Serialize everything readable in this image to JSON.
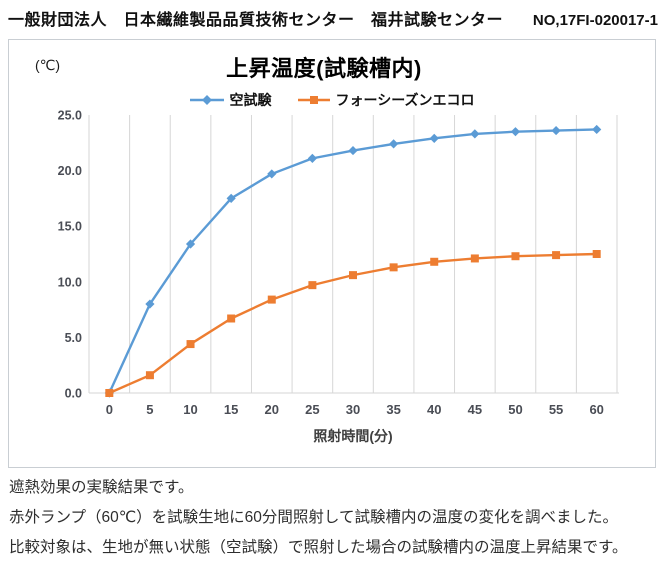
{
  "header": {
    "org_line": "一般財団法人　日本繊維製品品質技術センター　福井試験センター",
    "report_no": "NO,17FI-020017-1"
  },
  "chart_data": {
    "type": "line",
    "title": "上昇温度(試験槽内)",
    "y_unit_label": "(℃)",
    "xlabel": "照射時間(分)",
    "ylabel": "",
    "categories": [
      0,
      5,
      10,
      15,
      20,
      25,
      30,
      35,
      40,
      45,
      50,
      55,
      60
    ],
    "series": [
      {
        "name": "空試験",
        "marker": "diamond",
        "color": "#5B9BD5",
        "values": [
          0.0,
          8.0,
          13.4,
          17.5,
          19.7,
          21.1,
          21.8,
          22.4,
          22.9,
          23.3,
          23.5,
          23.6,
          23.7
        ]
      },
      {
        "name": "フォーシーズンエコロ",
        "marker": "square",
        "color": "#ED7D31",
        "values": [
          0.0,
          1.6,
          4.4,
          6.7,
          8.4,
          9.7,
          10.6,
          11.3,
          11.8,
          12.1,
          12.3,
          12.4,
          12.5
        ]
      }
    ],
    "ylim": [
      0,
      25
    ],
    "ytick_step": 5,
    "ytick_labels": [
      "0.0",
      "5.0",
      "10.0",
      "15.0",
      "20.0",
      "25.0"
    ],
    "grid": "vertical-only",
    "legend_position": "top-center",
    "gridline_color": "#d6d6d6",
    "tick_label_color": "#4a4d55"
  },
  "caption": {
    "lines": [
      "遮熱効果の実験結果です。",
      "赤外ランプ（60℃）を試験生地に60分間照射して試験槽内の温度の変化を調べました。",
      "比較対象は、生地が無い状態（空試験）で照射した場合の試験槽内の温度上昇結果です。"
    ]
  }
}
